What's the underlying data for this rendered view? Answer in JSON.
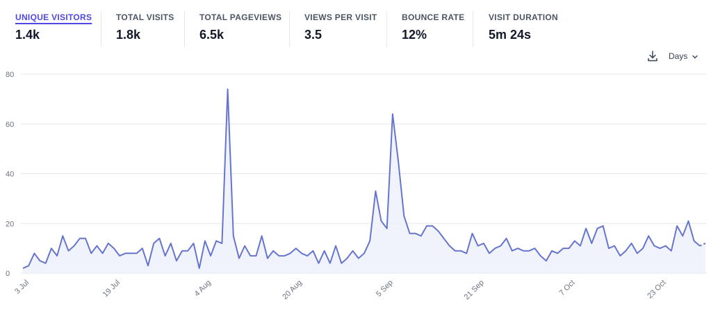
{
  "metrics": [
    {
      "label": "UNIQUE VISITORS",
      "value": "1.4k",
      "active": true
    },
    {
      "label": "TOTAL VISITS",
      "value": "1.8k",
      "active": false
    },
    {
      "label": "TOTAL PAGEVIEWS",
      "value": "6.5k",
      "active": false
    },
    {
      "label": "VIEWS PER VISIT",
      "value": "3.5",
      "active": false
    },
    {
      "label": "BOUNCE RATE",
      "value": "12%",
      "active": false
    },
    {
      "label": "VISIT DURATION",
      "value": "5m 24s",
      "active": false
    }
  ],
  "controls": {
    "download_icon": "download-icon",
    "interval_label": "Days",
    "interval_icon": "chevron-down-icon"
  },
  "colors": {
    "accent": "#4f46e5",
    "line": "#6574cd",
    "fill": "#eef0fb",
    "grid": "#e5e7eb"
  },
  "chart_data": {
    "type": "line",
    "title": "",
    "xlabel": "",
    "ylabel": "",
    "ylim": [
      0,
      80
    ],
    "yticks": [
      0,
      20,
      40,
      60,
      80
    ],
    "grid": true,
    "x_tick_labels": [
      "3 Jul",
      "19 Jul",
      "4 Aug",
      "20 Aug",
      "5 Sep",
      "21 Sep",
      "7 Oct",
      "23 Oct"
    ],
    "x_tick_indices": [
      0,
      16,
      32,
      48,
      64,
      80,
      96,
      112
    ],
    "series": [
      {
        "name": "Unique visitors",
        "values": [
          2,
          3,
          8,
          5,
          4,
          10,
          7,
          15,
          9,
          11,
          14,
          14,
          8,
          11,
          8,
          12,
          10,
          7,
          8,
          8,
          8,
          10,
          3,
          12,
          14,
          7,
          12,
          5,
          9,
          9,
          12,
          2,
          13,
          7,
          13,
          12,
          74,
          15,
          6,
          11,
          7,
          7,
          15,
          6,
          9,
          7,
          7,
          8,
          10,
          8,
          7,
          9,
          4,
          9,
          4,
          11,
          4,
          6,
          9,
          6,
          8,
          13,
          33,
          21,
          18,
          64,
          45,
          23,
          16,
          16,
          15,
          19,
          19,
          17,
          14,
          11,
          9,
          9,
          8,
          16,
          11,
          12,
          8,
          10,
          11,
          14,
          9,
          10,
          9,
          9,
          10,
          7,
          5,
          9,
          8,
          10,
          10,
          13,
          11,
          18,
          12,
          18,
          19,
          10,
          11,
          7,
          9,
          12,
          8,
          10,
          15,
          11,
          10,
          11,
          9,
          19,
          15,
          21,
          13,
          11,
          12
        ],
        "incomplete_last": 9
      }
    ]
  }
}
